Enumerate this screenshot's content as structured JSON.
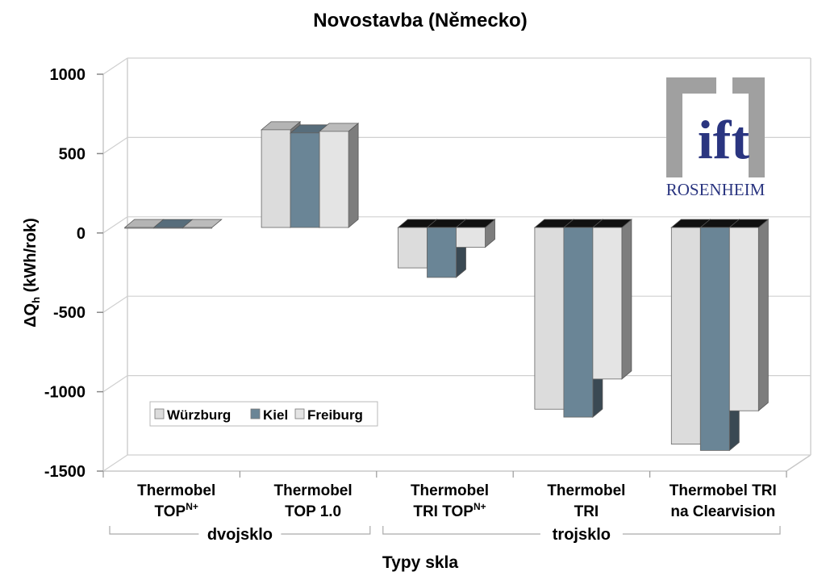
{
  "chart_data": {
    "type": "bar",
    "title": "Novostavba (Německo)",
    "ylabel_main": "ΔQ",
    "ylabel_sub": "h",
    "ylabel_rest": " (kWh/rok)",
    "xlabel": "Typy skla",
    "ylim": [
      -1500,
      1000
    ],
    "yticks": [
      "1000",
      "500",
      "0",
      "-500",
      "-1000",
      "-1500"
    ],
    "ytick_values": [
      1000,
      500,
      0,
      -500,
      -1000,
      -1500
    ],
    "grid": true,
    "legend_placement": "bottom-left",
    "categories": [
      {
        "line1": "Thermobel",
        "line2_main": "TOP",
        "line2_sup": "N+"
      },
      {
        "line1": "Thermobel",
        "line2_main": "TOP 1.0",
        "line2_sup": ""
      },
      {
        "line1": "Thermobel",
        "line2_main": "TRI TOP",
        "line2_sup": "N+"
      },
      {
        "line1": "Thermobel",
        "line2_main": "TRI",
        "line2_sup": ""
      },
      {
        "line1": "Thermobel TRI",
        "line2_main": "na Clearvision",
        "line2_sup": ""
      }
    ],
    "groups": [
      {
        "label": "dvojsklo",
        "categories": [
          0,
          1
        ]
      },
      {
        "label": "trojsklo",
        "categories": [
          2,
          3,
          4
        ]
      }
    ],
    "series": [
      {
        "name": "Würzburg",
        "color": "#dcdcdc",
        "values": [
          10,
          650,
          -220,
          -1110,
          -1330
        ]
      },
      {
        "name": "Kiel",
        "color": "#6a8596",
        "values": [
          10,
          630,
          -280,
          -1160,
          -1370
        ]
      },
      {
        "name": "Freiburg",
        "color": "#e4e4e4",
        "values": [
          10,
          640,
          -90,
          -920,
          -1120
        ]
      }
    ]
  },
  "logo": {
    "text_main": "ift",
    "text_sub": "ROSENHEIM",
    "brand_color": "#2a3580",
    "frame_color": "#a0a0a0"
  }
}
